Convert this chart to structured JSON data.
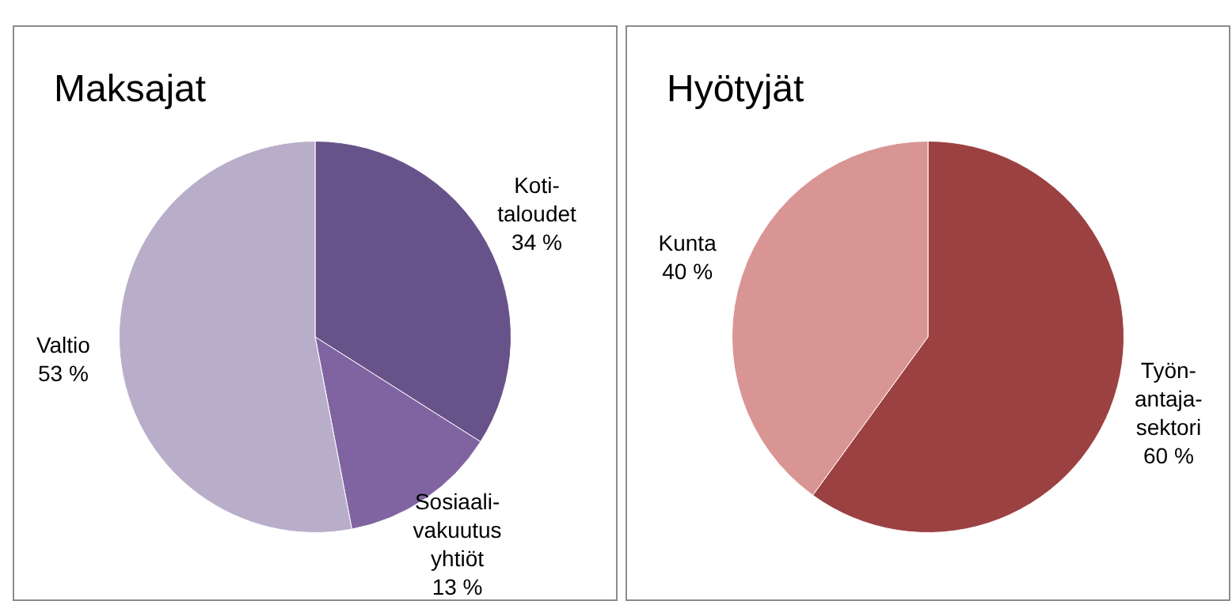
{
  "chart_data": [
    {
      "type": "pie",
      "title": "Maksajat",
      "categories": [
        "Koti-taloudet",
        "Sosiaali-vakuutus yhtiöt",
        "Valtio"
      ],
      "values": [
        34,
        13,
        53
      ],
      "colors": [
        "#68528a",
        "#8064a2",
        "#b9aec9"
      ],
      "value_labels": [
        "34 %",
        "13 %",
        "53 %"
      ]
    },
    {
      "type": "pie",
      "title": "Hyötyjät",
      "categories": [
        "Työn-antaja-sektori",
        "Kunta"
      ],
      "values": [
        60,
        40
      ],
      "colors": [
        "#9c4141",
        "#d99594"
      ],
      "value_labels": [
        "60 %",
        "40 %"
      ]
    }
  ]
}
